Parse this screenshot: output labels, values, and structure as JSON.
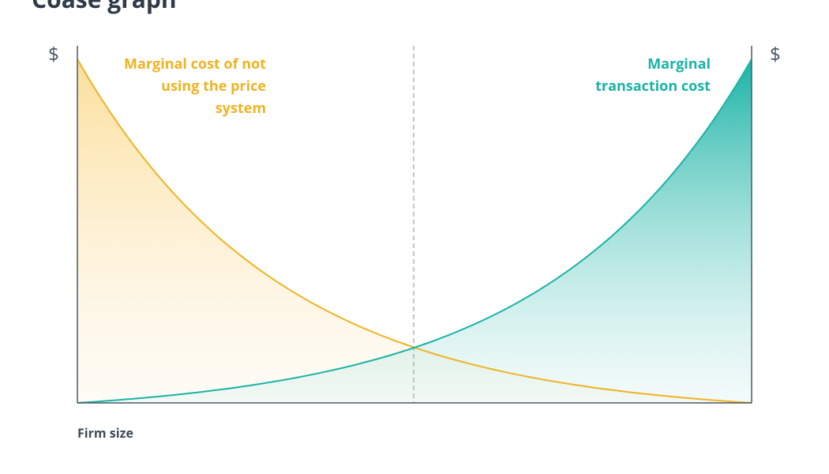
{
  "title": "Coase graph",
  "axes": {
    "left_unit": "$",
    "right_unit": "$",
    "x_label": "Firm size"
  },
  "curves": [
    {
      "label_lines": [
        "Marginal cost of not",
        "using the price",
        "system"
      ]
    },
    {
      "label_lines": [
        "Marginal",
        "transaction cost"
      ]
    }
  ]
}
